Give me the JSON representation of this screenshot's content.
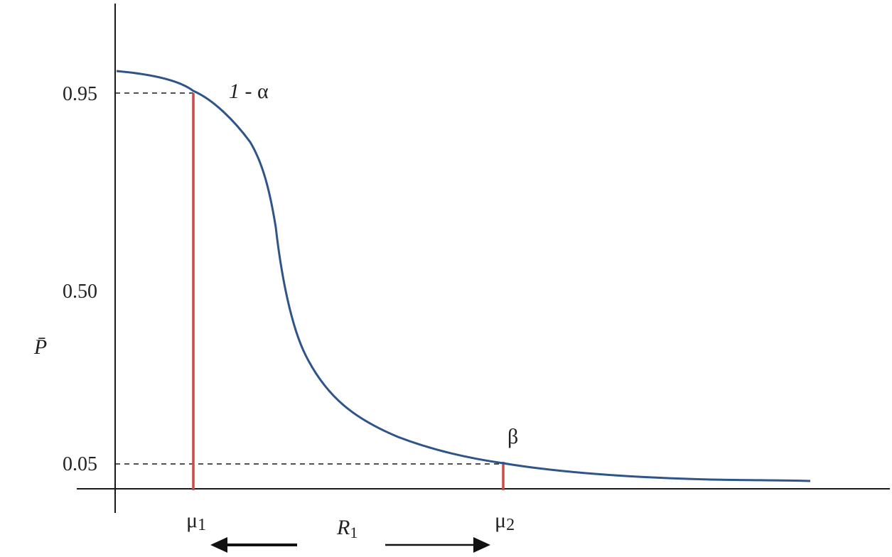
{
  "chart_data": {
    "type": "line",
    "title": "",
    "xlabel": "",
    "ylabel": "P̄",
    "yticks": [
      "0.95",
      "0.50",
      "0.05"
    ],
    "ylim": [
      0,
      1.075
    ],
    "series": [
      {
        "color": "#2f5489",
        "points": [
          [
            0,
            1.0
          ],
          [
            0.5,
            0.99
          ],
          [
            1.0,
            0.975
          ],
          [
            1.5,
            0.95
          ],
          [
            2.0,
            0.915
          ],
          [
            2.5,
            0.855
          ],
          [
            3.0,
            0.78
          ],
          [
            3.3,
            0.66
          ],
          [
            3.6,
            0.45
          ],
          [
            4.0,
            0.32
          ],
          [
            4.5,
            0.235
          ],
          [
            5.0,
            0.17
          ],
          [
            6.0,
            0.105
          ],
          [
            7.0,
            0.07
          ],
          [
            7.5,
            0.058
          ],
          [
            8.0,
            0.05
          ],
          [
            9.0,
            0.038
          ],
          [
            10.0,
            0.028
          ],
          [
            11.0,
            0.022
          ],
          [
            12.0,
            0.018
          ],
          [
            13.0,
            0.014
          ],
          [
            14.0,
            0.011
          ],
          [
            15.0,
            0.008
          ],
          [
            16.0,
            0.006
          ],
          [
            17.0,
            0.004
          ],
          [
            18.0,
            0.003
          ],
          [
            19.0,
            0.002
          ],
          [
            20.0,
            0.0015
          ],
          [
            21.0,
            0.001
          ],
          [
            22.0,
            0.0008
          ],
          [
            23.0,
            0.0006
          ],
          [
            24.0,
            0.0005
          ],
          [
            25.0,
            0.0004
          ],
          [
            26.0,
            0.0004
          ],
          [
            27.0,
            0.0003
          ],
          [
            28.0,
            0.0003
          ],
          [
            29.0,
            0.0002
          ],
          [
            30.0,
            0.0002
          ],
          [
            31.0,
            0.0002
          ],
          [
            32.0,
            0.0001
          ],
          [
            33.0,
            0.0001
          ],
          [
            34.0,
            0.0001
          ],
          [
            35.0,
            0.0001
          ],
          [
            36.0,
            0.0001
          ],
          [
            37.0,
            0.0001
          ],
          [
            38.0,
            0.0001
          ],
          [
            39.0,
            0.0001
          ],
          [
            40.0,
            0.0001
          ],
          [
            41.0,
            0.0001
          ],
          [
            42.0,
            0.0001
          ],
          [
            43.0,
            0.0001
          ],
          [
            44.0,
            0.0001
          ],
          [
            45.0,
            0.0001
          ]
        ]
      }
    ],
    "annotations": {
      "mu1_label": "μ",
      "mu1_sub": "1",
      "mu2_label": "μ",
      "mu2_sub": "2",
      "r1_label": "R",
      "r1_sub": "1",
      "one_minus_alpha_one": "1",
      "one_minus_alpha_rest": " - α",
      "beta": "β"
    },
    "colors": {
      "curve": "#2f5489",
      "marker_lines": "#cc4a48",
      "axes": "#1a1a1a"
    }
  }
}
